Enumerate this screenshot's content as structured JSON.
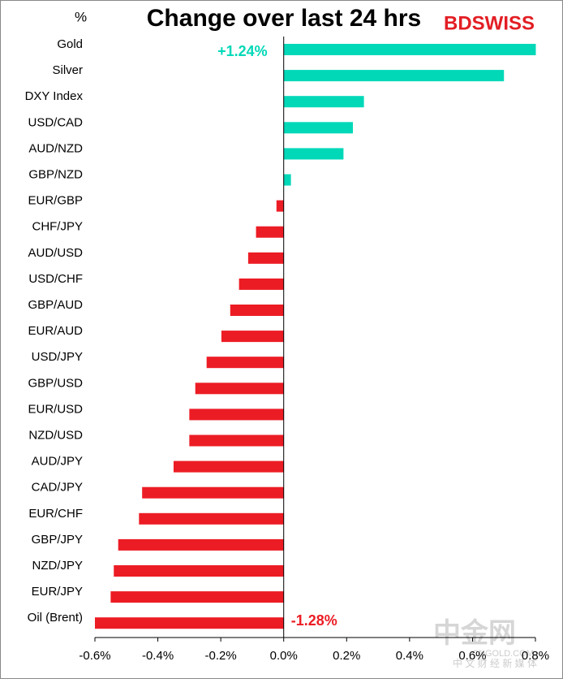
{
  "chart_data": {
    "type": "barh",
    "title": "Change over last 24 hrs",
    "unit_label": "%",
    "logo": "BDSWISS",
    "watermark": [
      "中金网",
      "CNGOLD.COM",
      "中 文 财 经 新 媒 体"
    ],
    "categories": [
      "Gold",
      "Silver",
      "DXY Index",
      "USD/CAD",
      "AUD/NZD",
      "GBP/NZD",
      "EUR/GBP",
      "CHF/JPY",
      "AUD/USD",
      "USD/CHF",
      "GBP/AUD",
      "EUR/AUD",
      "USD/JPY",
      "GBP/USD",
      "EUR/USD",
      "NZD/USD",
      "AUD/JPY",
      "CAD/JPY",
      "EUR/CHF",
      "GBP/JPY",
      "NZD/JPY",
      "EUR/JPY",
      "Oil (Brent)"
    ],
    "values": [
      1.24,
      0.7,
      0.255,
      0.22,
      0.19,
      0.023,
      -0.023,
      -0.088,
      -0.113,
      -0.142,
      -0.17,
      -0.198,
      -0.245,
      -0.281,
      -0.3,
      -0.3,
      -0.35,
      -0.45,
      -0.46,
      -0.526,
      -0.54,
      -0.55,
      -1.28
    ],
    "value_labels": [
      "+1.24%",
      null,
      null,
      null,
      null,
      null,
      null,
      null,
      null,
      null,
      null,
      null,
      null,
      null,
      null,
      null,
      null,
      null,
      null,
      null,
      null,
      null,
      "-1.28%"
    ],
    "positive_color": "#00d8b8",
    "negative_color": "#ec1c24",
    "xlim": [
      -0.6,
      0.8
    ],
    "xticks": [
      {
        "value": -0.6,
        "label": "-0.6%"
      },
      {
        "value": -0.4,
        "label": "-0.4%"
      },
      {
        "value": -0.2,
        "label": "-0.2%"
      },
      {
        "value": 0,
        "label": "0.0%"
      },
      {
        "value": 0.2,
        "label": "0.2%"
      },
      {
        "value": 0.4,
        "label": "0.4%"
      },
      {
        "value": 0.6,
        "label": "0.6%"
      },
      {
        "value": 0.8,
        "label": "0.8%"
      }
    ],
    "grid": false
  }
}
